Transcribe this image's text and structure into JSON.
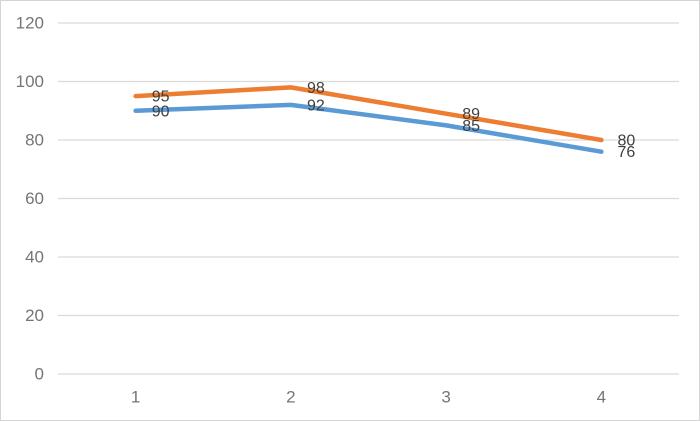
{
  "window": {
    "background": "#FFFFFF",
    "border_color": "#D5D5D5"
  },
  "chart_data": {
    "type": "line",
    "title": "",
    "categories": [
      "1",
      "2",
      "3",
      "4"
    ],
    "series": [
      {
        "name": "orange-series",
        "color": "#ED7D31",
        "values": [
          95,
          98,
          89,
          80
        ]
      },
      {
        "name": "blue-series",
        "color": "#5B9BD5",
        "values": [
          90,
          92,
          85,
          76
        ]
      }
    ],
    "y_axis": {
      "min": 0,
      "max": 120,
      "step": 20,
      "tick_labels": [
        "0",
        "20",
        "40",
        "60",
        "80",
        "100",
        "120"
      ]
    },
    "grid": true,
    "legend": "none",
    "data_labels": "right",
    "colors": {
      "gridline": "#D9D9D9",
      "axis_line": "#D9D9D9",
      "axis_label": "#757575",
      "data_label": "#404040"
    }
  }
}
